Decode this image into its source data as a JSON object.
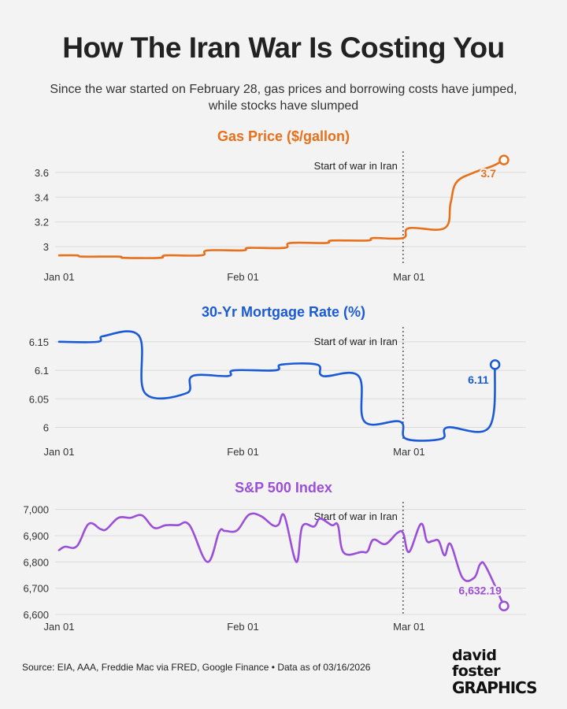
{
  "header": {
    "title": "How The Iran War Is Costing You",
    "subtitle_line1": "Since the war started on February 28, gas prices and borrowing costs have jumped,",
    "subtitle_line2": "while stocks have slumped"
  },
  "footer": {
    "source": "Source: EIA, AAA, Freddie Mac via FRED, Google Finance • Data as of 03/16/2026",
    "logo_line1": "david foster",
    "logo_line2": "GRAPHICS"
  },
  "chart_data": [
    {
      "type": "line",
      "id": "gas",
      "title": "Gas Price ($/gallon)",
      "color": "#e8701a",
      "x_domain": [
        0,
        77
      ],
      "x_ticks": [
        {
          "label": "Jan 01",
          "x": 0
        },
        {
          "label": "Feb 01",
          "x": 31
        },
        {
          "label": "Mar 01",
          "x": 59
        }
      ],
      "ylim": [
        2.88,
        3.72
      ],
      "y_ticks": [
        {
          "label": "3",
          "value": 3.0
        },
        {
          "label": "3.2",
          "value": 3.2
        },
        {
          "label": "3.4",
          "value": 3.4
        },
        {
          "label": "3.6",
          "value": 3.6
        }
      ],
      "annotation": {
        "label": "Start of war in Iran",
        "x": 58
      },
      "end_label": "3.7",
      "x": [
        0,
        3,
        4,
        10,
        11,
        17,
        18,
        24,
        25,
        31,
        32,
        38,
        39,
        45,
        46,
        52,
        53,
        58,
        59,
        65,
        66,
        67,
        70,
        73,
        75
      ],
      "values": [
        2.93,
        2.93,
        2.92,
        2.92,
        2.91,
        2.91,
        2.93,
        2.93,
        2.97,
        2.97,
        2.99,
        2.99,
        3.03,
        3.03,
        3.05,
        3.05,
        3.07,
        3.07,
        3.15,
        3.15,
        3.35,
        3.52,
        3.6,
        3.65,
        3.7
      ]
    },
    {
      "type": "line",
      "id": "mortgage",
      "title": "30-Yr Mortgage Rate (%)",
      "color": "#1a5ad6",
      "x_domain": [
        0,
        77
      ],
      "x_ticks": [
        {
          "label": "Jan 01",
          "x": 0
        },
        {
          "label": "Feb 01",
          "x": 31
        },
        {
          "label": "Mar 01",
          "x": 59
        }
      ],
      "ylim": [
        5.98,
        6.165
      ],
      "y_ticks": [
        {
          "label": "6",
          "value": 6.0
        },
        {
          "label": "6.05",
          "value": 6.05
        },
        {
          "label": "6.1",
          "value": 6.1
        },
        {
          "label": "6.15",
          "value": 6.15
        }
      ],
      "annotation": {
        "label": "Start of war in Iran",
        "x": 58
      },
      "end_label": "6.11",
      "x": [
        0,
        6.5,
        7.5,
        13.5,
        14.5,
        21.5,
        22.5,
        28.5,
        29.5,
        36.5,
        37.5,
        43.5,
        44.5,
        50.5,
        51.5,
        57.5,
        58.5,
        64.5,
        65.5,
        72.5,
        73.5
      ],
      "values": [
        6.15,
        6.15,
        6.16,
        6.16,
        6.06,
        6.06,
        6.09,
        6.09,
        6.1,
        6.1,
        6.11,
        6.11,
        6.09,
        6.09,
        6.01,
        6.01,
        5.98,
        5.98,
        6.0,
        6.0,
        6.11
      ]
    },
    {
      "type": "line",
      "id": "sp500",
      "title": "S&P 500 Index",
      "color": "#9b4fd9",
      "x_domain": [
        0,
        77
      ],
      "x_ticks": [
        {
          "label": "Jan 01",
          "x": 0
        },
        {
          "label": "Feb 01",
          "x": 31
        },
        {
          "label": "Mar 01",
          "x": 59
        }
      ],
      "ylim": [
        6600,
        7005
      ],
      "y_ticks": [
        {
          "label": "6,600",
          "value": 6600
        },
        {
          "label": "6,700",
          "value": 6700
        },
        {
          "label": "6,800",
          "value": 6800
        },
        {
          "label": "6,900",
          "value": 6900
        },
        {
          "label": "7,000",
          "value": 7000
        }
      ],
      "annotation": {
        "label": "Start of war in Iran",
        "x": 58
      },
      "end_label": "6,632.19",
      "x": [
        0,
        1,
        3,
        5,
        7,
        8,
        10,
        12,
        14,
        16,
        18,
        20,
        22,
        25,
        27,
        28,
        30,
        32,
        34,
        36,
        37,
        38,
        40,
        41,
        43,
        44,
        46,
        47,
        48,
        51,
        52,
        53,
        55,
        57,
        58,
        59,
        61,
        62,
        63,
        64,
        65,
        66,
        68,
        70,
        71,
        72,
        75
      ],
      "values": [
        6845,
        6858,
        6860,
        6945,
        6925,
        6925,
        6968,
        6968,
        6977,
        6930,
        6940,
        6940,
        6940,
        6800,
        6915,
        6918,
        6920,
        6980,
        6975,
        6940,
        6942,
        6975,
        6800,
        6935,
        6935,
        6965,
        6940,
        6940,
        6835,
        6838,
        6840,
        6885,
        6868,
        6910,
        6910,
        6838,
        6945,
        6880,
        6880,
        6880,
        6825,
        6868,
        6740,
        6740,
        6792,
        6780,
        6632.19
      ]
    }
  ]
}
